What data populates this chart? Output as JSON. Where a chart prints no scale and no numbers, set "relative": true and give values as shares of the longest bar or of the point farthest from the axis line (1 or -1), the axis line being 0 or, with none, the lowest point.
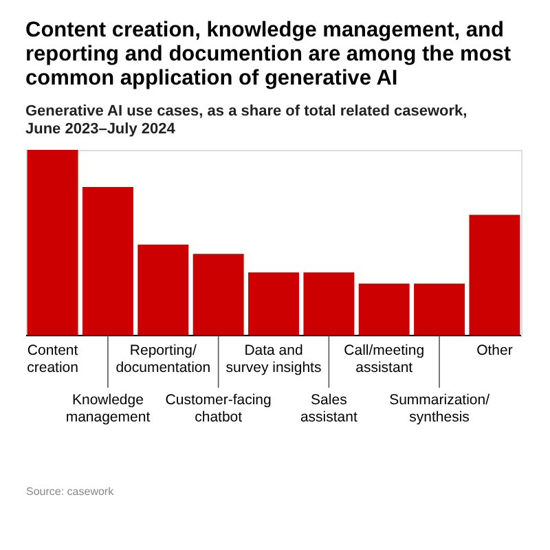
{
  "chart_data": {
    "type": "bar",
    "relative": true,
    "title": "Content creation, knowledge management, and reporting and documention are among the most common application of generative AI",
    "subtitle": "Generative AI use cases, as a share of total related casework, June 2023–July 2024",
    "categories": [
      "Content\ncreation",
      "Knowledge\nmanagement",
      "Reporting/\ndocumentation",
      "Customer-facing\nchatbot",
      "Data and\nsurvey insights",
      "Sales\nassistant",
      "Call/meeting\nassistant",
      "Summarization/\nsynthesis",
      "Other"
    ],
    "values": [
      1,
      0.8,
      0.49,
      0.44,
      0.34,
      0.34,
      0.28,
      0.28,
      0.65
    ],
    "color": "#cc0000",
    "annotations": [
      "Source: casework"
    ]
  }
}
